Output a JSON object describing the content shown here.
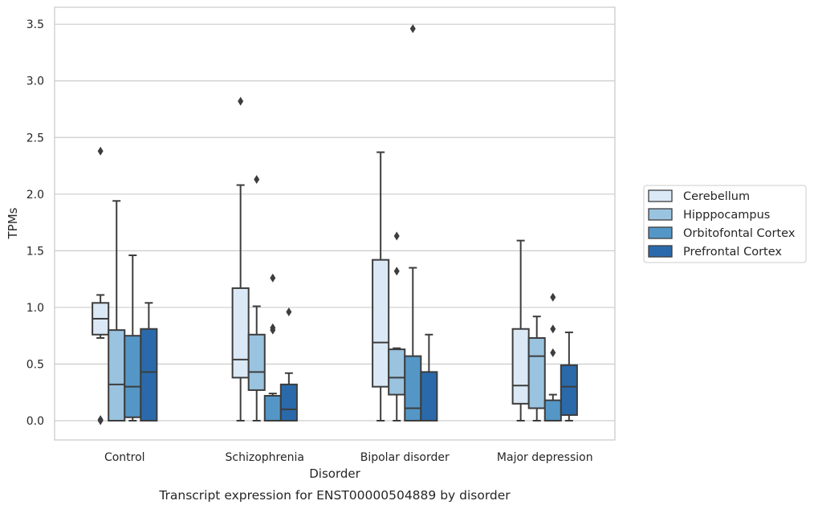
{
  "caption": "Transcript expression for ENST00000504889 by disorder",
  "chart_data": {
    "type": "box",
    "xlabel": "Disorder",
    "ylabel": "TPMs",
    "ylim": [
      -0.17,
      3.65
    ],
    "yticks": [
      0.0,
      0.5,
      1.0,
      1.5,
      2.0,
      2.5,
      3.0,
      3.5
    ],
    "ytick_labels": [
      "0.0",
      "0.5",
      "1.0",
      "1.5",
      "2.0",
      "2.5",
      "3.0",
      "3.5"
    ],
    "grid": "horizontal",
    "legend_position": "right",
    "categories": [
      "Control",
      "Schizophrenia",
      "Bipolar disorder",
      "Major depression"
    ],
    "series": [
      {
        "name": "Cerebellum",
        "color": "#dbe9f6",
        "boxes": [
          {
            "whislo": 0.73,
            "q1": 0.76,
            "med": 0.9,
            "q3": 1.04,
            "whishi": 1.11,
            "fliers": [
              2.38,
              0.0,
              0.01
            ]
          },
          {
            "whislo": 0.0,
            "q1": 0.38,
            "med": 0.54,
            "q3": 1.17,
            "whishi": 2.08,
            "fliers": [
              2.82
            ]
          },
          {
            "whislo": 0.0,
            "q1": 0.3,
            "med": 0.69,
            "q3": 1.42,
            "whishi": 2.37,
            "fliers": []
          },
          {
            "whislo": 0.0,
            "q1": 0.15,
            "med": 0.31,
            "q3": 0.81,
            "whishi": 1.59,
            "fliers": []
          }
        ]
      },
      {
        "name": "Hipppocampus",
        "color": "#9ac3df",
        "boxes": [
          {
            "whislo": 0.0,
            "q1": 0.0,
            "med": 0.32,
            "q3": 0.8,
            "whishi": 1.94,
            "fliers": []
          },
          {
            "whislo": 0.0,
            "q1": 0.27,
            "med": 0.43,
            "q3": 0.76,
            "whishi": 1.01,
            "fliers": [
              2.13
            ]
          },
          {
            "whislo": 0.0,
            "q1": 0.23,
            "med": 0.38,
            "q3": 0.63,
            "whishi": 0.64,
            "fliers": [
              1.63,
              1.32
            ]
          },
          {
            "whislo": 0.0,
            "q1": 0.11,
            "med": 0.57,
            "q3": 0.73,
            "whishi": 0.92,
            "fliers": []
          }
        ]
      },
      {
        "name": "Orbitofontal Cortex",
        "color": "#5497c7",
        "boxes": [
          {
            "whislo": 0.0,
            "q1": 0.03,
            "med": 0.3,
            "q3": 0.75,
            "whishi": 1.46,
            "fliers": []
          },
          {
            "whislo": 0.0,
            "q1": 0.0,
            "med": 0.0,
            "q3": 0.22,
            "whishi": 0.24,
            "fliers": [
              1.26,
              0.82,
              0.8
            ]
          },
          {
            "whislo": 0.0,
            "q1": 0.0,
            "med": 0.11,
            "q3": 0.57,
            "whishi": 1.35,
            "fliers": [
              3.46
            ]
          },
          {
            "whislo": 0.0,
            "q1": 0.0,
            "med": 0.0,
            "q3": 0.18,
            "whishi": 0.23,
            "fliers": [
              1.09,
              0.81,
              0.6
            ]
          }
        ]
      },
      {
        "name": "Prefrontal Cortex",
        "color": "#2a6aab",
        "boxes": [
          {
            "whislo": 0.0,
            "q1": 0.0,
            "med": 0.43,
            "q3": 0.81,
            "whishi": 1.04,
            "fliers": []
          },
          {
            "whislo": 0.0,
            "q1": 0.0,
            "med": 0.1,
            "q3": 0.32,
            "whishi": 0.42,
            "fliers": [
              0.96
            ]
          },
          {
            "whislo": 0.0,
            "q1": 0.0,
            "med": 0.0,
            "q3": 0.43,
            "whishi": 0.76,
            "fliers": []
          },
          {
            "whislo": 0.0,
            "q1": 0.05,
            "med": 0.3,
            "q3": 0.49,
            "whishi": 0.78,
            "fliers": []
          }
        ]
      }
    ]
  }
}
